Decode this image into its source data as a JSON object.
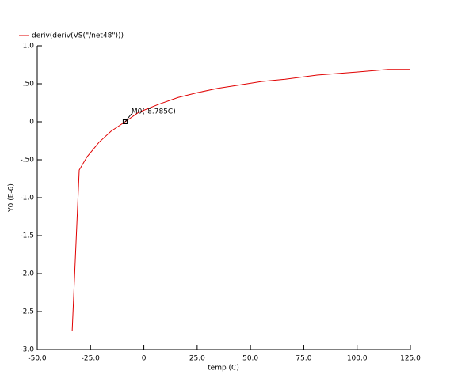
{
  "chart_data": {
    "type": "line",
    "xlabel": "temp (C)",
    "ylabel": "Y0 (E-6)",
    "series": [
      {
        "name": "deriv(deriv(VS(\"/net48\")))",
        "color": "#e00000",
        "x": [
          -33.6,
          -30.3,
          -26.6,
          -21.0,
          -15.4,
          -8.8,
          -2.4,
          6.9,
          16.1,
          25.4,
          34.7,
          44.0,
          55.2,
          66.3,
          81.2,
          99.8,
          114.6,
          125.0
        ],
        "values": [
          -2.75,
          -0.635,
          -0.46,
          -0.27,
          -0.125,
          0,
          0.125,
          0.23,
          0.32,
          0.385,
          0.44,
          0.48,
          0.53,
          0.56,
          0.615,
          0.655,
          0.69,
          0.69
        ]
      }
    ],
    "marker": {
      "label": "M0(-8.785C)",
      "x": -8.785,
      "y": 0
    },
    "xlim": [
      -50,
      125
    ],
    "xticks": [
      {
        "value": -50,
        "label": "-50.0"
      },
      {
        "value": -25,
        "label": "-25.0"
      },
      0,
      {
        "value": 25,
        "label": "25.0"
      },
      {
        "value": 50,
        "label": "50.0"
      },
      {
        "value": 75,
        "label": "75.0"
      },
      {
        "value": 100,
        "label": "100.0"
      },
      {
        "value": 125,
        "label": "125.0"
      }
    ],
    "ylim": [
      -3,
      1
    ],
    "yticks": [
      {
        "value": 1,
        "label": "1.0"
      },
      {
        "value": 0.5,
        "label": ".50"
      },
      0,
      {
        "value": -0.5,
        "label": "-.50"
      },
      {
        "value": -1,
        "label": "-1.0"
      },
      {
        "value": -1.5,
        "label": "-1.5"
      },
      {
        "value": -2,
        "label": "-2.0"
      },
      {
        "value": -2.5,
        "label": "-2.5"
      },
      {
        "value": -3,
        "label": "-3.0"
      }
    ],
    "legend": "top-left"
  }
}
